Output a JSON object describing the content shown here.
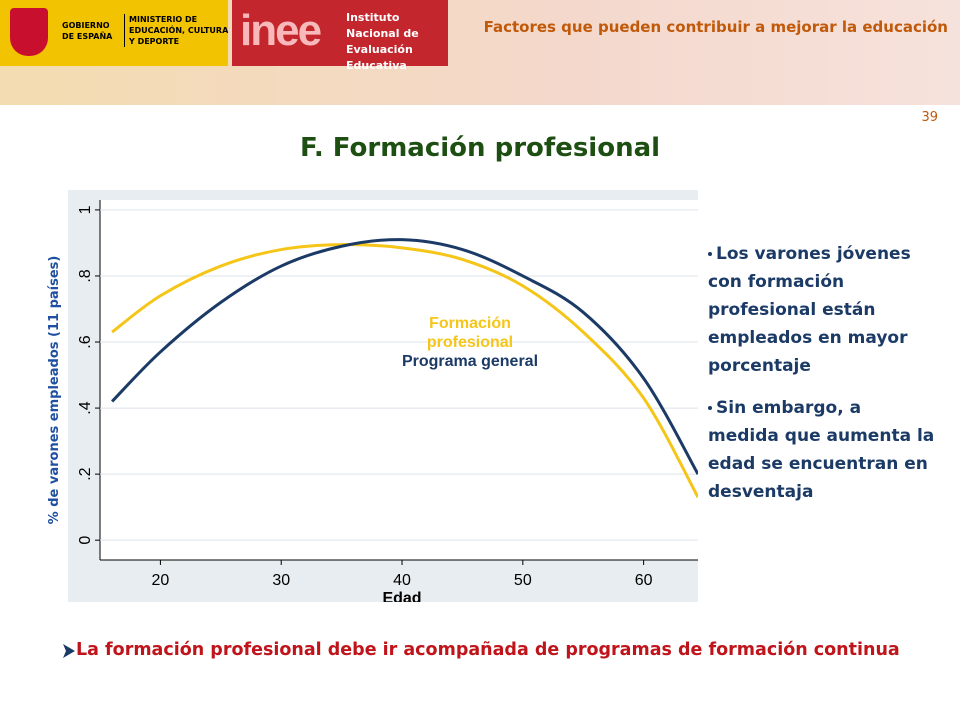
{
  "header": {
    "government": "GOBIERNO DE ESPAÑA",
    "ministry": "MINISTERIO DE EDUCACIÓN, CULTURA Y DEPORTE",
    "inee_logo": "inee",
    "institute": "Instituto Nacional de Evaluación Educativa",
    "section_title": "Factores que pueden contribuir a mejorar la educación"
  },
  "page_number": "39",
  "title": "F. Formación profesional",
  "chart_data": {
    "type": "line",
    "x_label": "Edad",
    "y_label": "% de varones empleados (11 países)",
    "x": [
      16,
      20,
      25,
      30,
      35,
      40,
      45,
      50,
      55,
      60,
      64.5
    ],
    "series": [
      {
        "name": "Formación profesional",
        "color": "#f5c518",
        "values": [
          0.63,
          0.74,
          0.83,
          0.88,
          0.895,
          0.885,
          0.85,
          0.77,
          0.63,
          0.43,
          0.13
        ]
      },
      {
        "name": "Programa general",
        "color": "#1b3a66",
        "values": [
          0.42,
          0.57,
          0.72,
          0.83,
          0.89,
          0.91,
          0.88,
          0.8,
          0.69,
          0.49,
          0.2
        ]
      }
    ],
    "xlim": [
      15,
      64.5
    ],
    "xticks": [
      20,
      30,
      40,
      50,
      60
    ],
    "ylim": [
      -0.06,
      1.03
    ],
    "yticks": [
      0,
      {
        "value": 0.2,
        "label": ".2"
      },
      {
        "value": 0.4,
        "label": ".4"
      },
      {
        "value": 0.6,
        "label": ".6"
      },
      {
        "value": 0.8,
        "label": ".8"
      },
      1
    ],
    "grid": true
  },
  "bullets": [
    "Los varones jóvenes con formación profesional están empleados en mayor porcentaje",
    "Sin embargo, a medida que aumenta la edad se encuentran en desventaja"
  ],
  "conclusion": "La formación profesional debe ir acompañada de programas de formación continua"
}
